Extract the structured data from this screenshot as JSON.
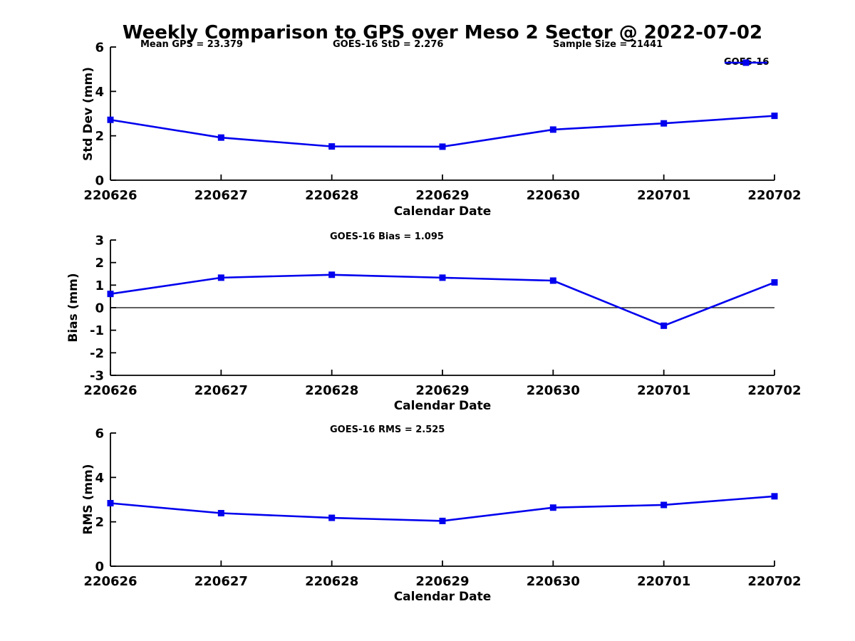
{
  "header": {
    "title": "Weekly Comparison to GPS over Meso 2 Sector @ 2022-07-02"
  },
  "legend": {
    "label": "GOES-16",
    "position": "top-right",
    "marker": "filled-square-on-line"
  },
  "colors": {
    "line": "#0000EE",
    "axis": "#000000",
    "text": "#000000",
    "background": "#FFFFFF"
  },
  "chart_data": [
    {
      "type": "line",
      "subplot": "std-dev",
      "x": [
        "220626",
        "220627",
        "220628",
        "220629",
        "220630",
        "220701",
        "220702"
      ],
      "series": [
        {
          "name": "GOES-16",
          "values": [
            2.72,
            1.92,
            1.52,
            1.51,
            2.28,
            2.56,
            2.9
          ]
        }
      ],
      "annotations": [
        "Mean GPS = 23.379",
        "GOES-16 StD = 2.276",
        "Sample Size = 21441"
      ],
      "xlabel": "Calendar Date",
      "ylabel": "Std Dev (mm)",
      "ylim": [
        0,
        6
      ],
      "yticks": [
        0,
        2,
        4,
        6
      ],
      "zero_line": false,
      "grid": false,
      "legend_visible": true
    },
    {
      "type": "line",
      "subplot": "bias",
      "x": [
        "220626",
        "220627",
        "220628",
        "220629",
        "220630",
        "220701",
        "220702"
      ],
      "series": [
        {
          "name": "GOES-16",
          "values": [
            0.61,
            1.33,
            1.46,
            1.33,
            1.2,
            -0.8,
            1.12
          ]
        }
      ],
      "annotation": "GOES-16 Bias  = 1.095",
      "xlabel": "Calendar Date",
      "ylabel": "Bias (mm)",
      "ylim": [
        -3,
        3
      ],
      "yticks": [
        -3,
        -2,
        -1,
        0,
        1,
        2,
        3
      ],
      "zero_line": true,
      "grid": false,
      "legend_visible": false
    },
    {
      "type": "line",
      "subplot": "rms",
      "x": [
        "220626",
        "220627",
        "220628",
        "220629",
        "220630",
        "220701",
        "220702"
      ],
      "series": [
        {
          "name": "GOES-16",
          "values": [
            2.84,
            2.39,
            2.18,
            2.04,
            2.64,
            2.76,
            3.15
          ]
        }
      ],
      "annotation": "GOES-16 RMS = 2.525",
      "xlabel": "Calendar Date",
      "ylabel": "RMS (mm)",
      "ylim": [
        0,
        6
      ],
      "yticks": [
        0,
        2,
        4,
        6
      ],
      "zero_line": false,
      "grid": false,
      "legend_visible": false
    }
  ]
}
